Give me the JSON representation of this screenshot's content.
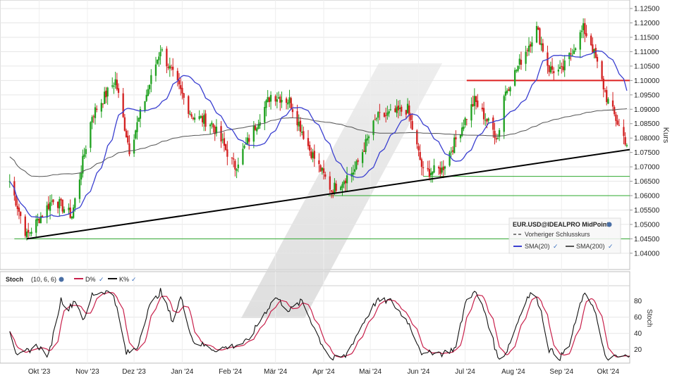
{
  "chart_data": [
    {
      "type": "candlestick",
      "instrument": "EUR.USD@IDEALPRO MidPoint",
      "ylabel": "Kurs",
      "ylim": [
        1.038,
        1.126
      ],
      "y_ticks": [
        "1.04000",
        "1.04500",
        "1.05000",
        "1.05500",
        "1.06000",
        "1.06500",
        "1.07000",
        "1.07500",
        "1.08000",
        "1.08500",
        "1.09000",
        "1.09500",
        "1.10000",
        "1.10500",
        "1.11000",
        "1.11500",
        "1.12000",
        "1.12500"
      ],
      "x_ticks": [
        "Okt '23",
        "Nov '23",
        "Dez '23",
        "Jan '24",
        "Feb '24",
        "Mär '24",
        "Apr '24",
        "Mai '24",
        "Jun '24",
        "Jul '24",
        "Aug '24",
        "Sep '24",
        "Okt '24"
      ],
      "grid": true,
      "legend": {
        "position": "bottom-right",
        "entries": [
          {
            "label": "EUR.USD@IDEALPRO MidPoint",
            "color": "#000000"
          },
          {
            "label": "Vorheriger Schlusskurs",
            "color": "#555555",
            "style": "dashed"
          },
          {
            "label": "SMA(20)",
            "color": "#3a3fd0"
          },
          {
            "label": "SMA(200)",
            "color": "#555555"
          }
        ]
      },
      "close_anchors": [
        [
          "2023-09-22",
          1.065
        ],
        [
          "2023-10-03",
          1.046
        ],
        [
          "2023-10-20",
          1.059
        ],
        [
          "2023-11-01",
          1.053
        ],
        [
          "2023-11-14",
          1.088
        ],
        [
          "2023-11-29",
          1.1
        ],
        [
          "2023-12-08",
          1.076
        ],
        [
          "2023-12-28",
          1.111
        ],
        [
          "2024-01-17",
          1.088
        ],
        [
          "2024-01-30",
          1.085
        ],
        [
          "2024-02-14",
          1.07
        ],
        [
          "2024-03-08",
          1.095
        ],
        [
          "2024-03-20",
          1.093
        ],
        [
          "2024-04-02",
          1.076
        ],
        [
          "2024-04-16",
          1.062
        ],
        [
          "2024-05-01",
          1.069
        ],
        [
          "2024-05-15",
          1.087
        ],
        [
          "2024-06-04",
          1.09
        ],
        [
          "2024-06-14",
          1.068
        ],
        [
          "2024-06-26",
          1.069
        ],
        [
          "2024-07-08",
          1.083
        ],
        [
          "2024-07-17",
          1.093
        ],
        [
          "2024-08-01",
          1.08
        ],
        [
          "2024-08-05",
          1.095
        ],
        [
          "2024-08-26",
          1.118
        ],
        [
          "2024-09-03",
          1.104
        ],
        [
          "2024-09-11",
          1.103
        ],
        [
          "2024-09-25",
          1.118
        ],
        [
          "2024-09-30",
          1.113
        ],
        [
          "2024-10-10",
          1.094
        ],
        [
          "2024-10-23",
          1.078
        ]
      ],
      "sma20_last": 1.0955,
      "sma200_last": 1.0872,
      "annotations": [
        {
          "type": "trendline",
          "from": [
            "2023-10-03",
            1.045
          ],
          "to": [
            "2024-10-25",
            1.076
          ],
          "color": "#000000"
        },
        {
          "type": "hline",
          "y": 1.1,
          "from": "2024-07-12",
          "to": "2024-10-25",
          "color": "#dd2222"
        },
        {
          "type": "hline",
          "y": 1.0667,
          "from": "2024-06-14",
          "to": "2024-10-25",
          "color": "#2ea82e"
        },
        {
          "type": "hline",
          "y": 1.06,
          "from": "2024-04-14",
          "to": "2024-10-25",
          "color": "#2ea82e"
        },
        {
          "type": "hline",
          "y": 1.045,
          "from": "2023-09-25",
          "to": "2024-10-25",
          "color": "#2ea82e"
        }
      ]
    },
    {
      "type": "line",
      "title": "Stoch",
      "params": "(10, 6, 6)",
      "ylabel": "Stoch",
      "ylim": [
        5,
        98
      ],
      "y_ticks": [
        "20",
        "40",
        "60",
        "80"
      ],
      "series": [
        {
          "name": "D%",
          "color": "#c8204b"
        },
        {
          "name": "K%",
          "color": "#111111"
        }
      ],
      "k_anchors": [
        [
          "2023-09-22",
          45
        ],
        [
          "2023-09-27",
          10
        ],
        [
          "2023-10-03",
          18
        ],
        [
          "2023-10-10",
          25
        ],
        [
          "2023-10-17",
          12
        ],
        [
          "2023-10-25",
          82
        ],
        [
          "2023-10-30",
          70
        ],
        [
          "2023-11-03",
          82
        ],
        [
          "2023-11-09",
          55
        ],
        [
          "2023-11-14",
          88
        ],
        [
          "2023-11-22",
          92
        ],
        [
          "2023-11-28",
          88
        ],
        [
          "2023-12-06",
          15
        ],
        [
          "2023-12-13",
          22
        ],
        [
          "2023-12-20",
          70
        ],
        [
          "2023-12-28",
          92
        ],
        [
          "2024-01-05",
          55
        ],
        [
          "2024-01-10",
          85
        ],
        [
          "2024-01-18",
          30
        ],
        [
          "2024-01-25",
          25
        ],
        [
          "2024-02-01",
          20
        ],
        [
          "2024-02-14",
          25
        ],
        [
          "2024-02-22",
          30
        ],
        [
          "2024-03-04",
          65
        ],
        [
          "2024-03-11",
          85
        ],
        [
          "2024-03-20",
          68
        ],
        [
          "2024-03-28",
          80
        ],
        [
          "2024-04-09",
          30
        ],
        [
          "2024-04-16",
          8
        ],
        [
          "2024-04-25",
          12
        ],
        [
          "2024-05-07",
          55
        ],
        [
          "2024-05-15",
          80
        ],
        [
          "2024-05-24",
          80
        ],
        [
          "2024-06-04",
          55
        ],
        [
          "2024-06-10",
          30
        ],
        [
          "2024-06-14",
          12
        ],
        [
          "2024-06-21",
          18
        ],
        [
          "2024-06-26",
          15
        ],
        [
          "2024-07-05",
          22
        ],
        [
          "2024-07-12",
          85
        ],
        [
          "2024-07-18",
          90
        ],
        [
          "2024-07-24",
          65
        ],
        [
          "2024-08-01",
          10
        ],
        [
          "2024-08-06",
          15
        ],
        [
          "2024-08-12",
          45
        ],
        [
          "2024-08-19",
          82
        ],
        [
          "2024-08-23",
          90
        ],
        [
          "2024-08-28",
          75
        ],
        [
          "2024-09-03",
          20
        ],
        [
          "2024-09-10",
          10
        ],
        [
          "2024-09-16",
          25
        ],
        [
          "2024-09-24",
          82
        ],
        [
          "2024-09-27",
          88
        ],
        [
          "2024-10-02",
          72
        ],
        [
          "2024-10-09",
          10
        ],
        [
          "2024-10-16",
          10
        ],
        [
          "2024-10-21",
          12
        ],
        [
          "2024-10-25",
          10
        ]
      ]
    }
  ]
}
